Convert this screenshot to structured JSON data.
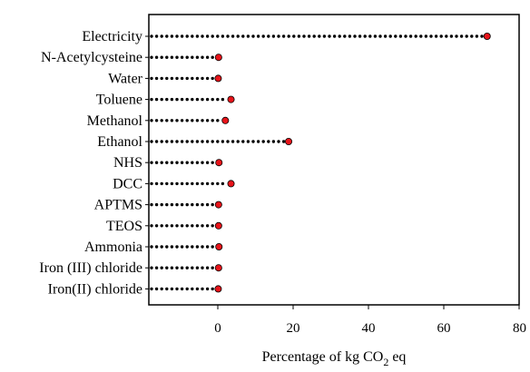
{
  "chart_data": {
    "type": "lollipop",
    "title": "",
    "xlabel_main": "Percentage of kg CO",
    "xlabel_sub": "2",
    "xlabel_tail": " eq",
    "ylabel": "",
    "xlim": [
      -16,
      80
    ],
    "xticks": [
      0,
      20,
      40,
      60,
      80
    ],
    "grid": false,
    "marker_color": "#e8141a",
    "stem_color": "#000000",
    "categories": [
      "Electricity",
      "N-Acetylcysteine",
      "Water",
      "Toluene",
      "Methanol",
      "Ethanol",
      "NHS",
      "DCC",
      "APTMS",
      "TEOS",
      "Ammonia",
      "Iron (III) chloride",
      "Iron(II) chloride"
    ],
    "values": [
      71.5,
      0.2,
      0.1,
      3.5,
      2.0,
      18.8,
      0.3,
      3.5,
      0.2,
      0.2,
      0.3,
      0.2,
      0.1
    ]
  }
}
